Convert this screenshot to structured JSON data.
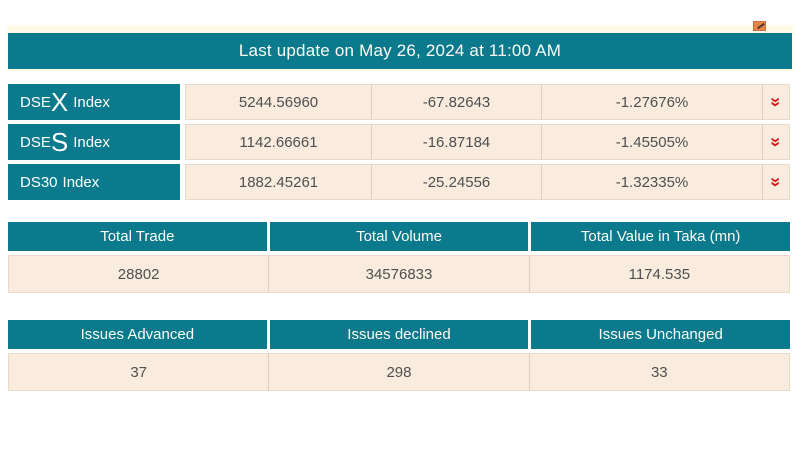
{
  "colors": {
    "teal": "#0b7a8c",
    "ivory": "#fffbe9",
    "cream": "#f9ecdf",
    "cream-border": "#e7dac8",
    "cream-separator": "#dccfbd",
    "text-dark": "#4f4f4f",
    "white-text": "#fcfcf6",
    "red": "#d9191f",
    "orange": "#e5854b",
    "orange-mark": "#533526"
  },
  "header": {
    "last_update": "Last update on May 26, 2024 at 11:00 AM"
  },
  "indices": {
    "rows": [
      {
        "label_prefix": "DSE",
        "label_big": "X",
        "label_suffix": "Index",
        "value": "5244.56960",
        "change": "-67.82643",
        "change_percent": "-1.27676%",
        "trend": "down"
      },
      {
        "label_prefix": "DSE",
        "label_big": "S",
        "label_suffix": "Index",
        "value": "1142.66661",
        "change": "-16.87184",
        "change_percent": "-1.45505%",
        "trend": "down"
      },
      {
        "label_prefix": "DS30",
        "label_big": "",
        "label_suffix": "Index",
        "value": "1882.45261",
        "change": "-25.24556",
        "change_percent": "-1.32335%",
        "trend": "down"
      }
    ]
  },
  "totals": {
    "headers": [
      "Total Trade",
      "Total Volume",
      "Total Value in Taka (mn)"
    ],
    "values": [
      "28802",
      "34576833",
      "1174.535"
    ]
  },
  "issues": {
    "headers": [
      "Issues Advanced",
      "Issues declined",
      "Issues Unchanged"
    ],
    "values": [
      "37",
      "298",
      "33"
    ]
  },
  "icons": {
    "double_down_chevron": "»"
  }
}
